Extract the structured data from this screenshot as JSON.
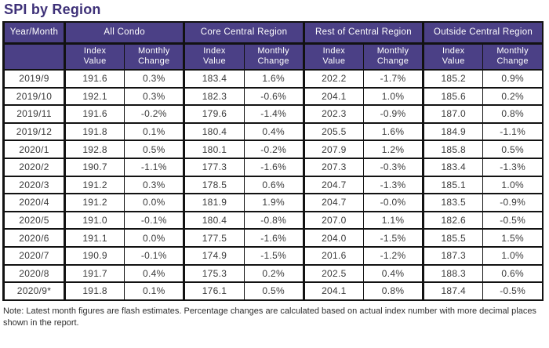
{
  "title": "SPI by Region",
  "note": "Note: Latest month figures are flash estimates. Percentage changes are calculated based on actual index number with more decimal places shown in the report.",
  "colors": {
    "header_bg": "#4b4086",
    "title_text": "#3e3178",
    "border": "#121212",
    "cell_text": "#3a3a3a"
  },
  "chart_data": {
    "type": "table",
    "title": "SPI by Region",
    "year_month_header": "Year/Month",
    "groups": [
      "All Condo",
      "Core Central Region",
      "Rest of Central Region",
      "Outside Central Region"
    ],
    "sub_headers": {
      "index": "Index Value",
      "change": "Monthly Change"
    },
    "rows": [
      {
        "month": "2019/9",
        "values": [
          "191.6",
          "0.3%",
          "183.4",
          "1.6%",
          "202.2",
          "-1.7%",
          "185.2",
          "0.9%"
        ]
      },
      {
        "month": "2019/10",
        "values": [
          "192.1",
          "0.3%",
          "182.3",
          "-0.6%",
          "204.1",
          "1.0%",
          "185.6",
          "0.2%"
        ]
      },
      {
        "month": "2019/11",
        "values": [
          "191.6",
          "-0.2%",
          "179.6",
          "-1.4%",
          "202.3",
          "-0.9%",
          "187.0",
          "0.8%"
        ]
      },
      {
        "month": "2019/12",
        "values": [
          "191.8",
          "0.1%",
          "180.4",
          "0.4%",
          "205.5",
          "1.6%",
          "184.9",
          "-1.1%"
        ]
      },
      {
        "month": "2020/1",
        "values": [
          "192.8",
          "0.5%",
          "180.1",
          "-0.2%",
          "207.9",
          "1.2%",
          "185.8",
          "0.5%"
        ]
      },
      {
        "month": "2020/2",
        "values": [
          "190.7",
          "-1.1%",
          "177.3",
          "-1.6%",
          "207.3",
          "-0.3%",
          "183.4",
          "-1.3%"
        ]
      },
      {
        "month": "2020/3",
        "values": [
          "191.2",
          "0.3%",
          "178.5",
          "0.6%",
          "204.7",
          "-1.3%",
          "185.1",
          "1.0%"
        ]
      },
      {
        "month": "2020/4",
        "values": [
          "191.2",
          "0.0%",
          "181.9",
          "1.9%",
          "204.7",
          "-0.0%",
          "183.5",
          "-0.9%"
        ]
      },
      {
        "month": "2020/5",
        "values": [
          "191.0",
          "-0.1%",
          "180.4",
          "-0.8%",
          "207.0",
          "1.1%",
          "182.6",
          "-0.5%"
        ]
      },
      {
        "month": "2020/6",
        "values": [
          "191.1",
          "0.0%",
          "177.5",
          "-1.6%",
          "204.0",
          "-1.5%",
          "185.5",
          "1.5%"
        ]
      },
      {
        "month": "2020/7",
        "values": [
          "190.9",
          "-0.1%",
          "174.9",
          "-1.5%",
          "201.6",
          "-1.2%",
          "187.3",
          "1.0%"
        ]
      },
      {
        "month": "2020/8",
        "values": [
          "191.7",
          "0.4%",
          "175.3",
          "0.2%",
          "202.5",
          "0.4%",
          "188.3",
          "0.6%"
        ]
      },
      {
        "month": "2020/9*",
        "values": [
          "191.8",
          "0.1%",
          "176.1",
          "0.5%",
          "204.1",
          "0.8%",
          "187.4",
          "-0.5%"
        ]
      }
    ]
  }
}
